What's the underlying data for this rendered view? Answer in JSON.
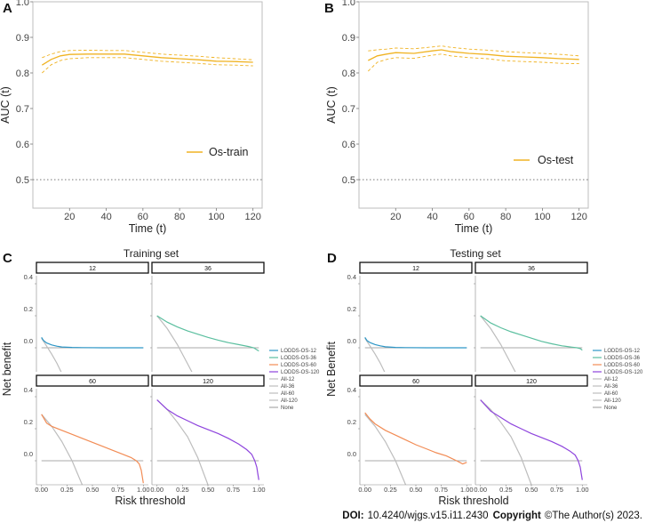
{
  "colors": {
    "auc": "#f0b323",
    "lodds12": "#2d96c6",
    "lodds36": "#5bbf9f",
    "lodds60": "#f28c55",
    "lodds120": "#8e44dd",
    "all": "#bdbdbd",
    "none": "#aaaaaa"
  },
  "chart_data": [
    {
      "panel": "A",
      "type": "line",
      "title": "",
      "xlabel": "Time (t)",
      "ylabel": "AUC (t)",
      "xlim": [
        0,
        125
      ],
      "ylim": [
        0.42,
        1.0
      ],
      "xticks": [
        "20",
        "40",
        "60",
        "80",
        "100",
        "120"
      ],
      "yticks": [
        "0.5",
        "0.6",
        "0.7",
        "0.8",
        "0.9",
        "1.0"
      ],
      "reference_line": 0.5,
      "legend": "Os-train",
      "x": [
        5,
        10,
        15,
        20,
        30,
        40,
        50,
        60,
        70,
        80,
        90,
        100,
        110,
        120
      ],
      "series": [
        {
          "name": "Os-train",
          "style": "solid",
          "values": [
            0.822,
            0.838,
            0.848,
            0.852,
            0.853,
            0.853,
            0.853,
            0.848,
            0.843,
            0.84,
            0.837,
            0.833,
            0.832,
            0.83
          ]
        },
        {
          "name": "upper",
          "style": "dashed",
          "values": [
            0.843,
            0.853,
            0.86,
            0.863,
            0.864,
            0.863,
            0.863,
            0.858,
            0.853,
            0.85,
            0.847,
            0.843,
            0.84,
            0.837
          ]
        },
        {
          "name": "lower",
          "style": "dashed",
          "values": [
            0.8,
            0.823,
            0.835,
            0.84,
            0.843,
            0.843,
            0.843,
            0.838,
            0.833,
            0.83,
            0.827,
            0.823,
            0.822,
            0.82
          ]
        }
      ]
    },
    {
      "panel": "B",
      "type": "line",
      "title": "",
      "xlabel": "Time (t)",
      "ylabel": "AUC (t)",
      "xlim": [
        0,
        125
      ],
      "ylim": [
        0.42,
        1.0
      ],
      "xticks": [
        "20",
        "40",
        "60",
        "80",
        "100",
        "120"
      ],
      "yticks": [
        "0.5",
        "0.6",
        "0.7",
        "0.8",
        "0.9",
        "1.0"
      ],
      "reference_line": 0.5,
      "legend": "Os-test",
      "x": [
        5,
        10,
        15,
        20,
        30,
        40,
        45,
        50,
        60,
        70,
        80,
        90,
        100,
        110,
        120
      ],
      "series": [
        {
          "name": "Os-test",
          "style": "solid",
          "values": [
            0.835,
            0.848,
            0.853,
            0.857,
            0.855,
            0.862,
            0.865,
            0.86,
            0.855,
            0.852,
            0.847,
            0.845,
            0.843,
            0.84,
            0.838
          ]
        },
        {
          "name": "upper",
          "style": "dashed",
          "values": [
            0.862,
            0.865,
            0.867,
            0.87,
            0.868,
            0.873,
            0.876,
            0.872,
            0.867,
            0.864,
            0.86,
            0.857,
            0.855,
            0.852,
            0.848
          ]
        },
        {
          "name": "lower",
          "style": "dashed",
          "values": [
            0.805,
            0.83,
            0.838,
            0.843,
            0.841,
            0.85,
            0.853,
            0.848,
            0.843,
            0.84,
            0.834,
            0.832,
            0.83,
            0.827,
            0.826
          ]
        }
      ]
    },
    {
      "panel": "C",
      "type": "line",
      "title": "Training set",
      "xlabel": "Risk threshold",
      "ylabel": "Net benefit",
      "xticks": [
        "0.00",
        "0.25",
        "0.50",
        "0.75",
        "1.00"
      ],
      "yticks": [
        "0.0",
        "0.2",
        "0.4"
      ],
      "xlim": [
        -0.05,
        1.05
      ],
      "ylim": [
        -0.15,
        0.45
      ],
      "legend": [
        "LODDS-OS-12",
        "LODDS-OS-36",
        "LODDS-OS-60",
        "LODDS-OS-120",
        "All-12",
        "All-36",
        "All-60",
        "All-120",
        "None"
      ],
      "facets": [
        {
          "strip": "12",
          "model": {
            "name": "LODDS-OS-12",
            "color_key": "lodds12",
            "x": [
              0,
              0.02,
              0.05,
              0.1,
              0.15,
              0.2,
              0.3,
              0.4,
              0.6,
              0.8,
              1.0
            ],
            "y": [
              0.065,
              0.045,
              0.03,
              0.018,
              0.01,
              0.005,
              0.002,
              0.001,
              0,
              0,
              0
            ]
          },
          "all": {
            "name": "All-12",
            "x": [
              0,
              0.05,
              0.1,
              0.15,
              0.2
            ],
            "y": [
              0.06,
              0.01,
              -0.04,
              -0.095,
              -0.16
            ]
          }
        },
        {
          "strip": "36",
          "model": {
            "name": "LODDS-OS-36",
            "color_key": "lodds36",
            "x": [
              0,
              0.1,
              0.2,
              0.3,
              0.4,
              0.5,
              0.6,
              0.7,
              0.8,
              0.9,
              0.95,
              1.0
            ],
            "y": [
              0.2,
              0.16,
              0.13,
              0.105,
              0.085,
              0.065,
              0.048,
              0.032,
              0.02,
              0.008,
              0.0,
              -0.02
            ]
          },
          "all": {
            "name": "All-36",
            "x": [
              0,
              0.1,
              0.2,
              0.3,
              0.35
            ],
            "y": [
              0.2,
              0.12,
              0.02,
              -0.1,
              -0.16
            ]
          }
        },
        {
          "strip": "60",
          "model": {
            "name": "LODDS-OS-60",
            "color_key": "lodds60",
            "x": [
              0,
              0.05,
              0.1,
              0.2,
              0.3,
              0.4,
              0.5,
              0.6,
              0.7,
              0.8,
              0.88,
              0.93,
              0.96,
              0.98,
              1.0
            ],
            "y": [
              0.29,
              0.235,
              0.215,
              0.19,
              0.165,
              0.14,
              0.115,
              0.09,
              0.065,
              0.04,
              0.02,
              0.0,
              -0.02,
              -0.06,
              -0.14
            ]
          },
          "all": {
            "name": "All-60",
            "x": [
              0,
              0.1,
              0.2,
              0.3,
              0.4
            ],
            "y": [
              0.29,
              0.215,
              0.12,
              0.0,
              -0.15
            ]
          }
        },
        {
          "strip": "120",
          "model": {
            "name": "LODDS-OS-120",
            "color_key": "lodds120",
            "x": [
              0,
              0.1,
              0.2,
              0.3,
              0.4,
              0.5,
              0.6,
              0.7,
              0.8,
              0.88,
              0.93,
              0.96,
              0.98,
              0.99,
              1.0
            ],
            "y": [
              0.38,
              0.32,
              0.28,
              0.25,
              0.22,
              0.195,
              0.17,
              0.14,
              0.105,
              0.07,
              0.04,
              0.0,
              -0.04,
              -0.08,
              -0.12
            ]
          },
          "all": {
            "name": "All-120",
            "x": [
              0,
              0.1,
              0.2,
              0.3,
              0.4,
              0.5
            ],
            "y": [
              0.38,
              0.32,
              0.24,
              0.15,
              0.02,
              -0.15
            ]
          }
        }
      ]
    },
    {
      "panel": "D",
      "type": "line",
      "title": "Testing set",
      "xlabel": "Risk threshold",
      "ylabel": "Net Benefit",
      "xticks": [
        "0.00",
        "0.25",
        "0.50",
        "0.75",
        "1.00"
      ],
      "yticks": [
        "0.0",
        "0.2",
        "0.4"
      ],
      "xlim": [
        -0.05,
        1.05
      ],
      "ylim": [
        -0.15,
        0.45
      ],
      "legend": [
        "LODDS-OS-12",
        "LODDS-OS-36",
        "LODDS-OS-60",
        "LODDS-OS-120",
        "All-12",
        "All-36",
        "All-60",
        "All-120",
        "None"
      ],
      "facets": [
        {
          "strip": "12",
          "model": {
            "name": "LODDS-OS-12",
            "color_key": "lodds12",
            "x": [
              0,
              0.02,
              0.05,
              0.1,
              0.15,
              0.2,
              0.3,
              0.4,
              0.6,
              0.8,
              1.0
            ],
            "y": [
              0.065,
              0.045,
              0.032,
              0.02,
              0.012,
              0.006,
              0.002,
              0.001,
              0,
              0,
              0
            ]
          },
          "all": {
            "name": "All-12",
            "x": [
              0,
              0.05,
              0.1,
              0.15,
              0.2
            ],
            "y": [
              0.06,
              0.01,
              -0.04,
              -0.095,
              -0.16
            ]
          }
        },
        {
          "strip": "36",
          "model": {
            "name": "LODDS-OS-36",
            "color_key": "lodds36",
            "x": [
              0,
              0.1,
              0.2,
              0.3,
              0.4,
              0.5,
              0.6,
              0.7,
              0.8,
              0.9,
              0.95,
              0.98,
              1.0
            ],
            "y": [
              0.2,
              0.155,
              0.125,
              0.1,
              0.08,
              0.06,
              0.04,
              0.025,
              0.012,
              0.004,
              0.0,
              -0.005,
              -0.015
            ]
          },
          "all": {
            "name": "All-36",
            "x": [
              0,
              0.1,
              0.2,
              0.3,
              0.35
            ],
            "y": [
              0.2,
              0.12,
              0.02,
              -0.1,
              -0.16
            ]
          }
        },
        {
          "strip": "60",
          "model": {
            "name": "LODDS-OS-60",
            "color_key": "lodds60",
            "x": [
              0,
              0.05,
              0.1,
              0.2,
              0.3,
              0.4,
              0.5,
              0.6,
              0.7,
              0.8,
              0.85,
              0.9,
              0.93,
              0.96,
              1.0
            ],
            "y": [
              0.3,
              0.26,
              0.23,
              0.19,
              0.16,
              0.13,
              0.1,
              0.075,
              0.05,
              0.03,
              0.015,
              0.0,
              -0.01,
              -0.02,
              -0.01
            ]
          },
          "all": {
            "name": "All-60",
            "x": [
              0,
              0.1,
              0.2,
              0.3,
              0.4
            ],
            "y": [
              0.29,
              0.215,
              0.12,
              0.0,
              -0.15
            ]
          }
        },
        {
          "strip": "120",
          "model": {
            "name": "LODDS-OS-120",
            "color_key": "lodds120",
            "x": [
              0,
              0.1,
              0.2,
              0.3,
              0.4,
              0.5,
              0.6,
              0.7,
              0.8,
              0.88,
              0.93,
              0.96,
              0.98,
              0.99,
              1.0
            ],
            "y": [
              0.38,
              0.31,
              0.27,
              0.23,
              0.2,
              0.17,
              0.145,
              0.12,
              0.09,
              0.06,
              0.035,
              0.0,
              -0.04,
              -0.08,
              -0.12
            ]
          },
          "all": {
            "name": "All-120",
            "x": [
              0,
              0.1,
              0.2,
              0.3,
              0.4,
              0.5
            ],
            "y": [
              0.38,
              0.32,
              0.24,
              0.15,
              0.02,
              -0.15
            ]
          }
        }
      ]
    }
  ],
  "footer": {
    "doi_label": "DOI:",
    "doi_value": "10.4240/wjgs.v15.i11.2430",
    "copyright_label": "Copyright",
    "copyright_value": "©The Author(s) 2023."
  }
}
